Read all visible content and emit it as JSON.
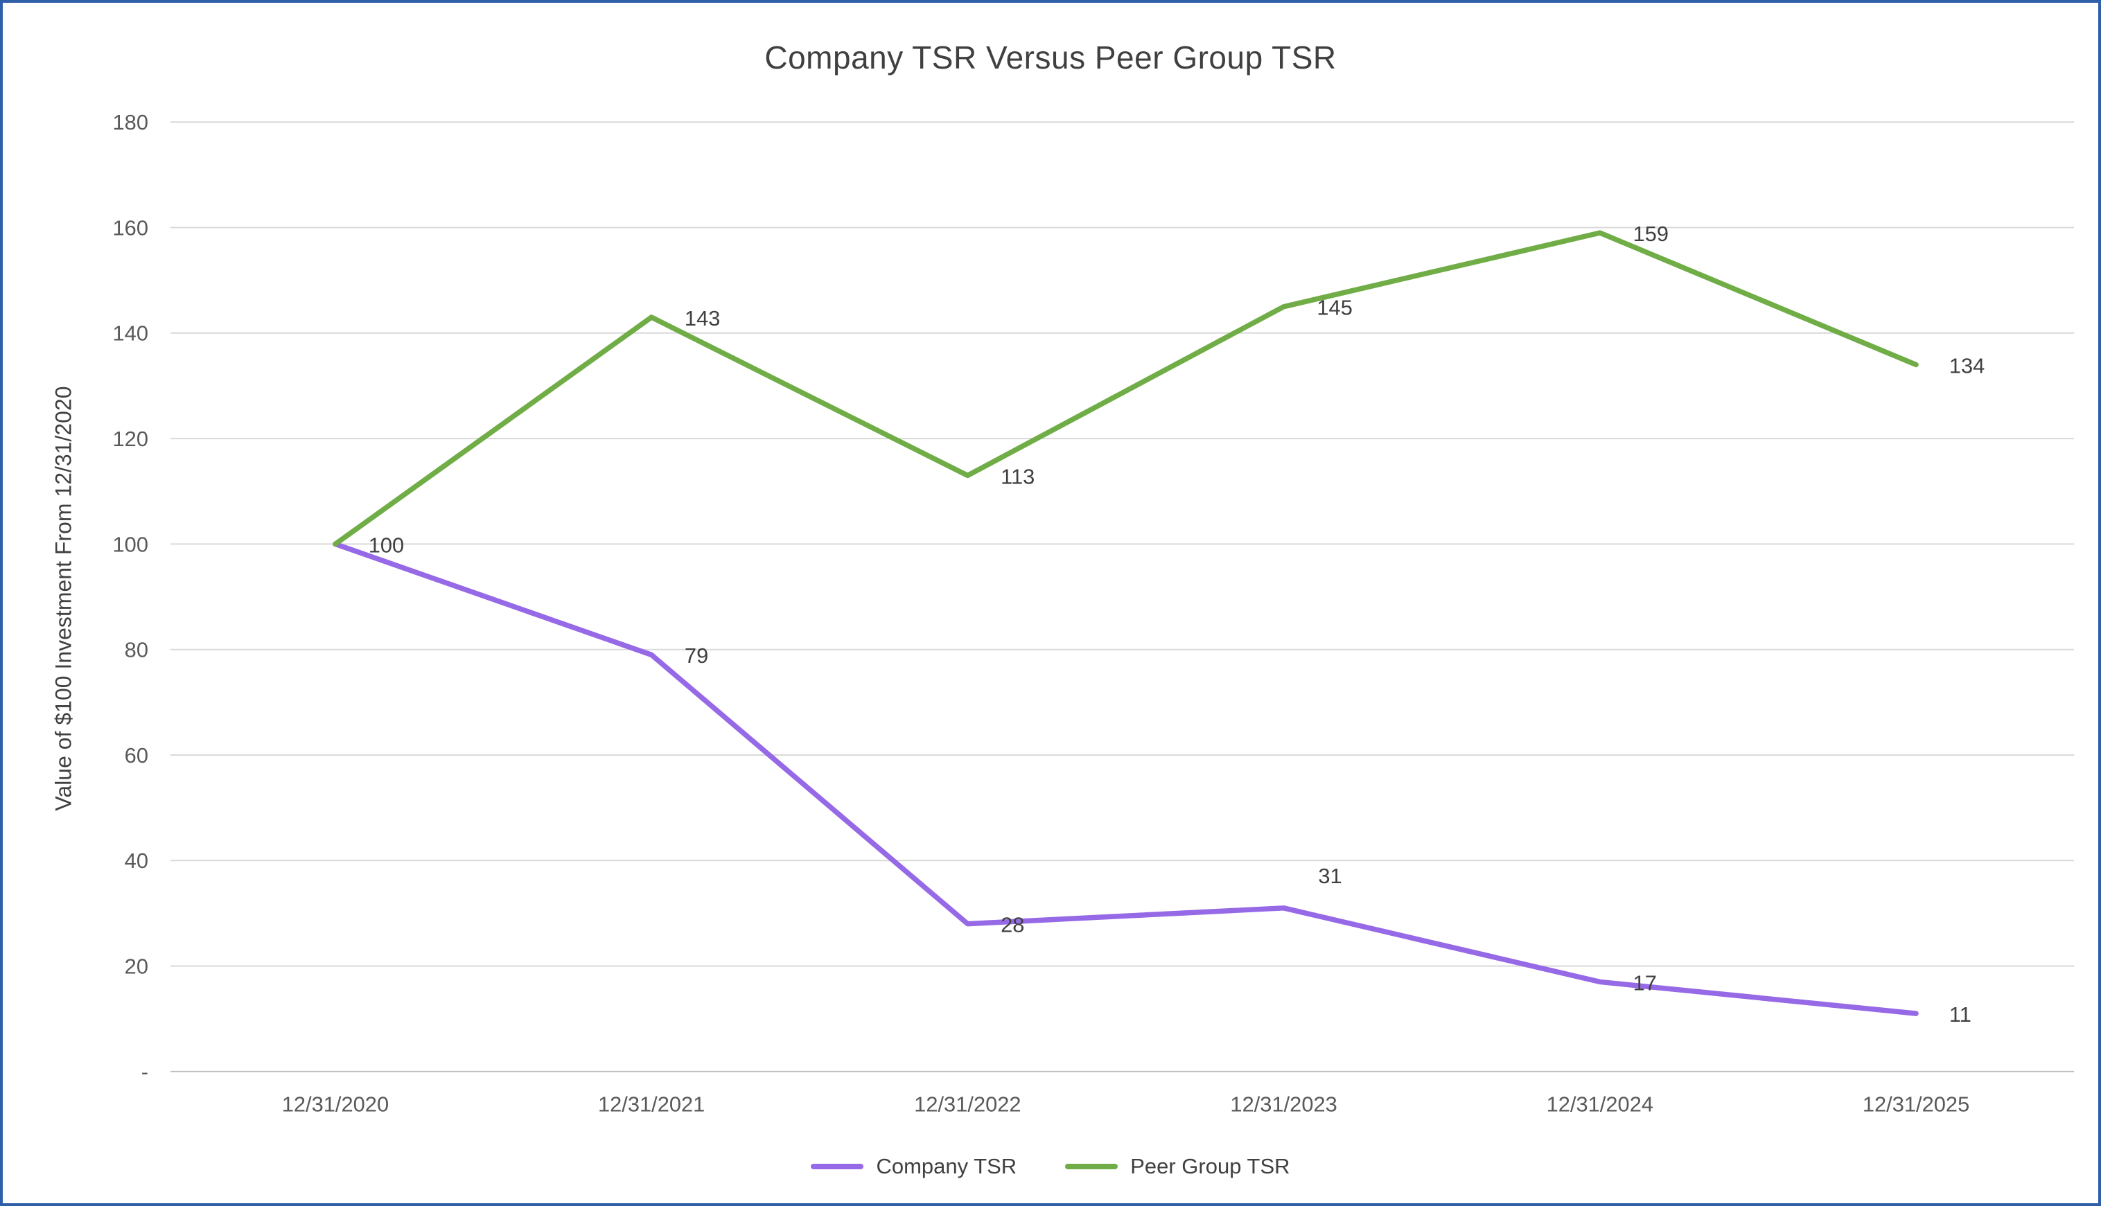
{
  "chart_data": {
    "type": "line",
    "title": "Company TSR Versus Peer Group TSR",
    "xlabel": "",
    "ylabel": "Value of $100 Investment From 12/31/2020",
    "categories": [
      "12/31/2020",
      "12/31/2021",
      "12/31/2022",
      "12/31/2023",
      "12/31/2024",
      "12/31/2025"
    ],
    "series": [
      {
        "name": "Company TSR",
        "color": "#9669E6",
        "values": [
          100,
          79,
          28,
          31,
          17,
          11
        ],
        "label_positions": [
          "right",
          "right",
          "right",
          "above",
          "right",
          "right"
        ]
      },
      {
        "name": "Peer Group TSR",
        "color": "#70AD47",
        "values": [
          100,
          143,
          113,
          145,
          159,
          134
        ],
        "label_positions": [
          "none",
          "right",
          "right",
          "right",
          "right",
          "right"
        ]
      }
    ],
    "ylim": [
      0,
      180
    ],
    "ytick_values": [
      0,
      20,
      40,
      60,
      80,
      100,
      120,
      140,
      160,
      180
    ],
    "ytick_labels": [
      "-",
      "20",
      "40",
      "60",
      "80",
      "100",
      "120",
      "140",
      "160",
      "180"
    ],
    "grid": true,
    "legend_position": "bottom",
    "colors": {
      "gridline": "#D9D9D9",
      "axis_line": "#BFBFBF",
      "tick_text": "#595959",
      "title_text": "#404040",
      "data_label_text": "#404040",
      "frame_border": "#2F5FA8"
    }
  }
}
